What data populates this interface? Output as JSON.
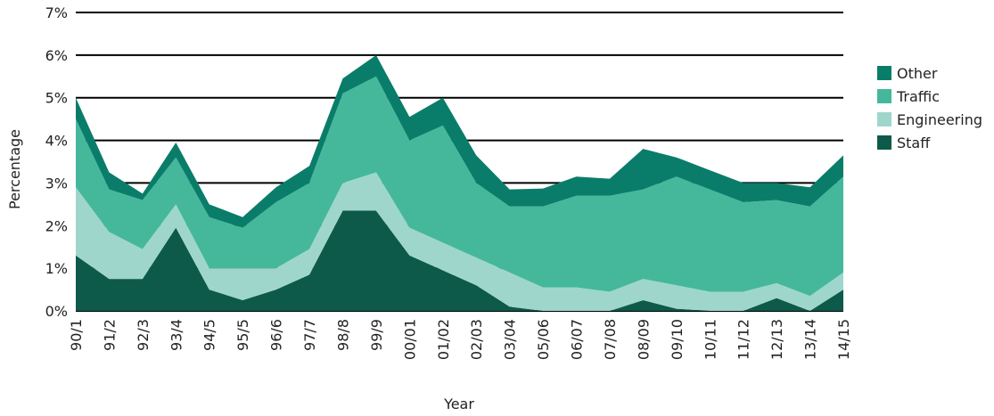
{
  "chart_data": {
    "type": "stacked_area",
    "x_label": "Year",
    "y_label": "Percentage",
    "categories": [
      "90/1",
      "91/2",
      "92/3",
      "93/4",
      "94/5",
      "95/5",
      "96/6",
      "97/7",
      "98/8",
      "99/9",
      "00/01",
      "01/02",
      "02/03",
      "03/04",
      "05/06",
      "06/07",
      "07/08",
      "08/09",
      "09/10",
      "10/11",
      "11/12",
      "12/13",
      "13/14",
      "14/15"
    ],
    "series": [
      {
        "name": "Staff",
        "color": "#0d5a4a",
        "values": [
          1.3,
          0.75,
          0.75,
          1.95,
          0.5,
          0.25,
          0.5,
          0.85,
          2.35,
          2.35,
          1.3,
          0.95,
          0.6,
          0.1,
          0,
          0,
          0,
          0.25,
          0.05,
          0,
          0,
          0.3,
          0,
          0.5
        ]
      },
      {
        "name": "Engineering",
        "color": "#9fd6cc",
        "values": [
          1.6,
          1.1,
          0.7,
          0.55,
          0.5,
          0.75,
          0.5,
          0.6,
          0.65,
          0.9,
          0.65,
          0.65,
          0.65,
          0.8,
          0.55,
          0.55,
          0.45,
          0.5,
          0.55,
          0.45,
          0.45,
          0.35,
          0.35,
          0.4
        ]
      },
      {
        "name": "Traffic",
        "color": "#45b89c",
        "values": [
          1.6,
          1.0,
          1.15,
          1.1,
          1.2,
          0.95,
          1.55,
          1.55,
          2.1,
          2.25,
          2.05,
          2.75,
          1.75,
          1.55,
          1.9,
          2.15,
          2.25,
          2.1,
          2.55,
          2.4,
          2.1,
          1.95,
          2.1,
          2.25
        ]
      },
      {
        "name": "Other",
        "color": "#0a7d6a",
        "values": [
          0.5,
          0.4,
          0.15,
          0.35,
          0.3,
          0.25,
          0.35,
          0.4,
          0.35,
          0.5,
          0.55,
          0.65,
          0.65,
          0.4,
          0.42,
          0.45,
          0.4,
          0.95,
          0.45,
          0.45,
          0.45,
          0.4,
          0.45,
          0.5
        ]
      }
    ],
    "ylim": [
      0,
      7
    ],
    "yticks": [
      {
        "value": 0,
        "label": "0%"
      },
      {
        "value": 1,
        "label": "1%"
      },
      {
        "value": 2,
        "label": "2%"
      },
      {
        "value": 3,
        "label": "3%"
      },
      {
        "value": 4,
        "label": "4%"
      },
      {
        "value": 5,
        "label": "5%"
      },
      {
        "value": 6,
        "label": "6%"
      },
      {
        "value": 7,
        "label": "7%"
      }
    ],
    "grid": true,
    "legend": "right"
  }
}
